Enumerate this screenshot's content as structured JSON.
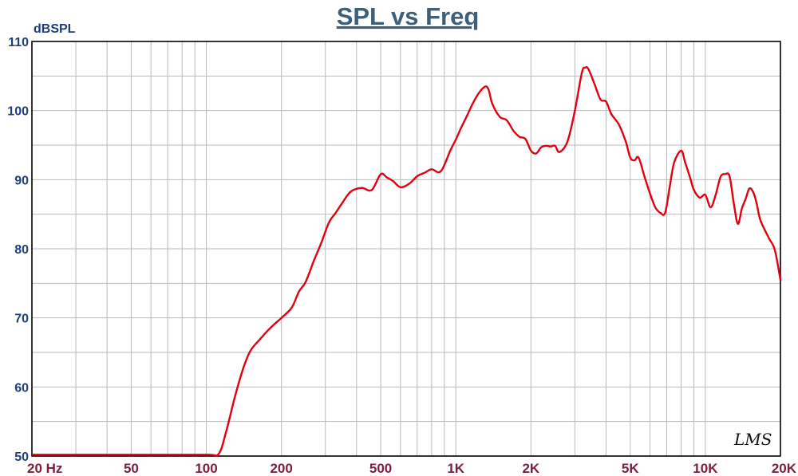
{
  "chart_data": {
    "type": "line",
    "title": "SPL vs Freq",
    "ylabel": "dBSPL",
    "xlabel": "",
    "x_scale": "log",
    "xlim": [
      20,
      20000
    ],
    "ylim": [
      50,
      110
    ],
    "grid": true,
    "legend": "none",
    "x_tick_values": [
      20,
      50,
      100,
      200,
      500,
      1000,
      2000,
      5000,
      10000,
      20000
    ],
    "x_tick_labels": [
      "20  Hz",
      "50",
      "100",
      "200",
      "500",
      "1K",
      "2K",
      "5K",
      "10K",
      "20K"
    ],
    "y_ticks": [
      50,
      60,
      70,
      80,
      90,
      100,
      110
    ],
    "y_tick_labels": [
      "50",
      "60",
      "70",
      "80",
      "90",
      "100",
      "110"
    ],
    "watermark": "LMS",
    "series": [
      {
        "color": "#e3000f",
        "x": [
          20,
          50,
          100,
          112,
          120,
          130,
          140,
          150,
          165,
          180,
          200,
          220,
          235,
          250,
          270,
          290,
          310,
          330,
          350,
          380,
          420,
          460,
          500,
          530,
          560,
          600,
          650,
          700,
          750,
          800,
          870,
          950,
          1000,
          1050,
          1100,
          1200,
          1300,
          1350,
          1400,
          1500,
          1600,
          1700,
          1800,
          1900,
          2000,
          2100,
          2200,
          2300,
          2400,
          2500,
          2600,
          2800,
          3000,
          3200,
          3300,
          3400,
          3600,
          3800,
          4000,
          4200,
          4500,
          4800,
          5000,
          5200,
          5400,
          5700,
          6000,
          6300,
          6600,
          6900,
          7200,
          7500,
          8000,
          8300,
          8700,
          9000,
          9500,
          10000,
          10500,
          11000,
          11500,
          12000,
          12500,
          13000,
          13500,
          14000,
          14500,
          15000,
          15500,
          16000,
          16500,
          17000,
          18000,
          19000,
          20000
        ],
        "y": [
          50.2,
          50.2,
          50.2,
          50.3,
          53.5,
          58.5,
          62.5,
          65.2,
          67.0,
          68.5,
          70.0,
          71.5,
          73.8,
          75.2,
          78.3,
          81.0,
          83.8,
          85.2,
          86.6,
          88.3,
          88.8,
          88.5,
          90.8,
          90.3,
          89.8,
          88.9,
          89.4,
          90.5,
          91.0,
          91.5,
          91.2,
          94.2,
          95.8,
          97.5,
          99.0,
          101.8,
          103.4,
          103.1,
          101.0,
          99.1,
          98.6,
          97.1,
          96.2,
          95.9,
          94.2,
          93.8,
          94.7,
          94.9,
          94.8,
          94.9,
          94.0,
          95.5,
          100.0,
          105.5,
          106.2,
          106.0,
          103.8,
          101.6,
          101.3,
          99.5,
          98.0,
          95.5,
          93.2,
          92.8,
          93.2,
          90.5,
          88.0,
          86.0,
          85.2,
          85.2,
          89.0,
          92.5,
          94.2,
          92.5,
          90.2,
          88.5,
          87.4,
          87.8,
          86.0,
          87.8,
          90.4,
          90.8,
          90.5,
          86.6,
          83.6,
          85.8,
          87.2,
          88.7,
          88.3,
          86.8,
          84.5,
          83.3,
          81.5,
          79.8,
          75.5
        ]
      }
    ]
  }
}
